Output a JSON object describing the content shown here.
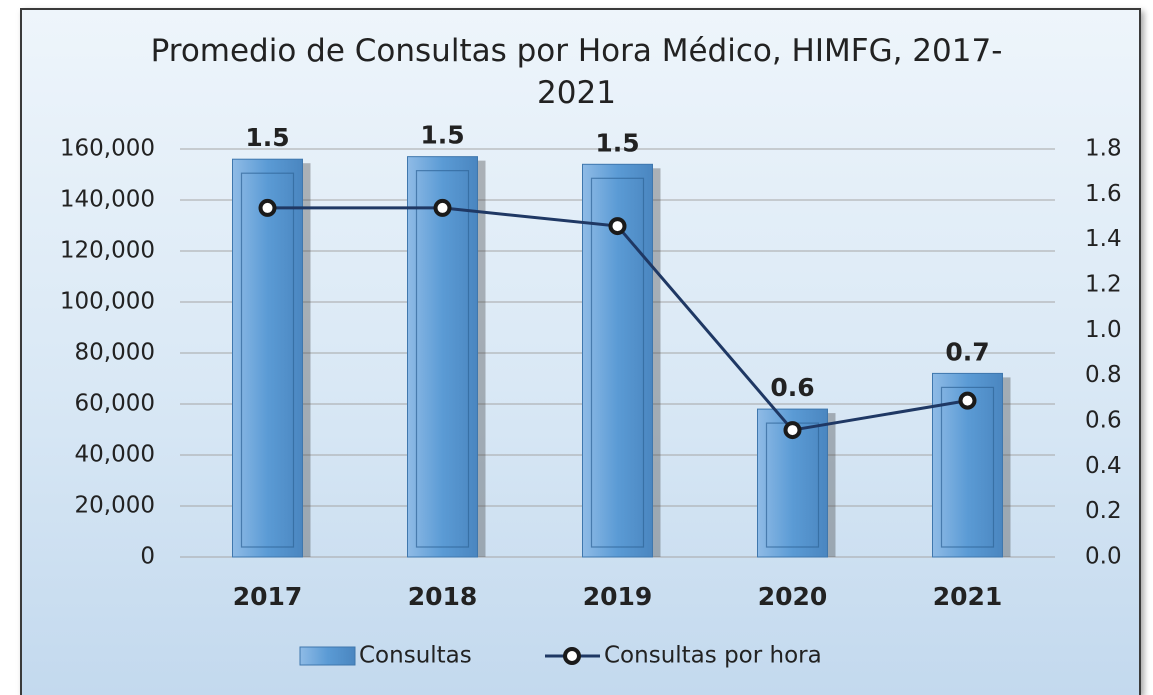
{
  "chart_data": {
    "type": "bar_line",
    "title": "Promedio de Consultas por Hora Médico, HIMFG, 2017-2021",
    "categories": [
      "2017",
      "2018",
      "2019",
      "2020",
      "2021"
    ],
    "series": [
      {
        "name": "Consultas",
        "type": "bar",
        "color": "#5b9bd5",
        "values": [
          156000,
          157000,
          154000,
          58000,
          72000
        ]
      },
      {
        "name": "Consultas por hora",
        "type": "line",
        "axis": "y2",
        "color": "#1f3864",
        "values": [
          1.54,
          1.54,
          1.46,
          0.56,
          0.69
        ],
        "value_labels": [
          "1.5",
          "1.5",
          "1.5",
          "0.6",
          "0.7"
        ]
      }
    ],
    "ylim": [
      0,
      160000
    ],
    "yticks": [
      0,
      {
        "value": 20000,
        "label": "20,000"
      },
      {
        "value": 40000,
        "label": "40,000"
      },
      {
        "value": 60000,
        "label": "60,000"
      },
      {
        "value": 80000,
        "label": "80,000"
      },
      {
        "value": 100000,
        "label": "100,000"
      },
      {
        "value": 120000,
        "label": "120,000"
      },
      {
        "value": 140000,
        "label": "140,000"
      },
      {
        "value": 160000,
        "label": "160,000"
      }
    ],
    "y2lim": [
      0,
      1.8
    ],
    "y2ticks": [
      {
        "value": 0,
        "label": "0.0"
      },
      0.2,
      0.4,
      0.6,
      0.8,
      {
        "value": 1,
        "label": "1.0"
      },
      1.2,
      1.4,
      1.6,
      1.8
    ],
    "grid": true,
    "legend": "bottom"
  }
}
